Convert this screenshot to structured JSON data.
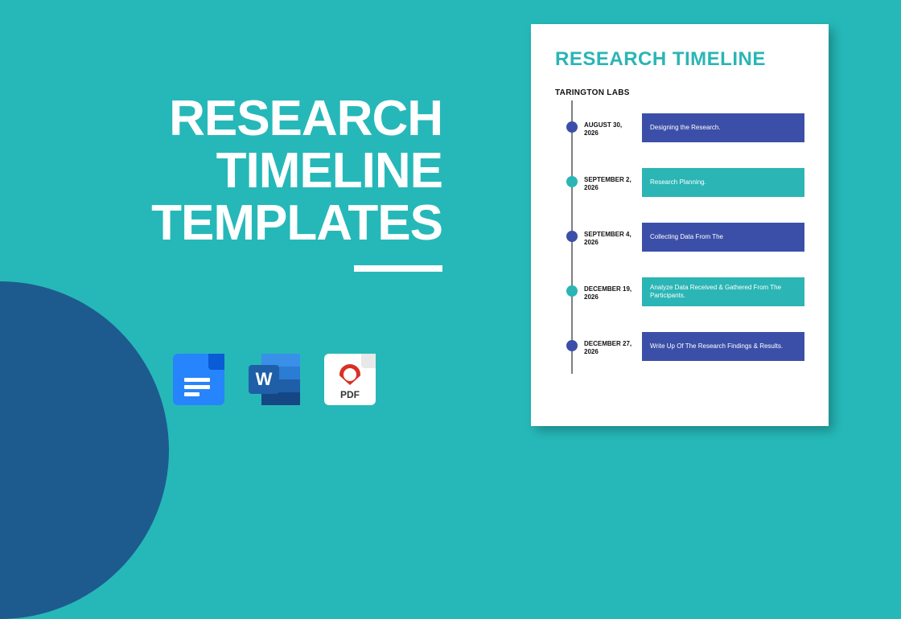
{
  "colors": {
    "background": "#26b8b8",
    "corner_circle": "#1d5b8f",
    "headline": "#ffffff",
    "doc_title": "#2bb5b5",
    "axis": "#808080",
    "teal_accent": "#2bb5b5",
    "blue_accent": "#3c4fa8"
  },
  "headline": {
    "line1": "RESEARCH",
    "line2": "TIMELINE",
    "line3": "TEMPLATES",
    "fontsize": 62,
    "underline_width": 110
  },
  "format_icons": {
    "gdocs": "google-docs-icon",
    "word_letter": "W",
    "pdf_label": "PDF"
  },
  "document": {
    "title": "RESEARCH TIMELINE",
    "subtitle": "TARINGTON LABS",
    "items": [
      {
        "date": "AUGUST 30, 2026",
        "text": "Designing the Research.",
        "dot_color": "#3c4fa8",
        "box_color": "#3c4fa8"
      },
      {
        "date": "SEPTEMBER 2, 2026",
        "text": "Research Planning.",
        "dot_color": "#2bb5b5",
        "box_color": "#2bb5b5"
      },
      {
        "date": "SEPTEMBER 4, 2026",
        "text": "Collecting Data From The",
        "dot_color": "#3c4fa8",
        "box_color": "#3c4fa8"
      },
      {
        "date": "DECEMBER 19, 2026",
        "text": "Analyze Data Received & Gathered From The Participants.",
        "dot_color": "#2bb5b5",
        "box_color": "#2bb5b5"
      },
      {
        "date": "DECEMBER 27, 2026",
        "text": "Write Up Of The Research Findings & Results.",
        "dot_color": "#3c4fa8",
        "box_color": "#3c4fa8"
      }
    ]
  }
}
